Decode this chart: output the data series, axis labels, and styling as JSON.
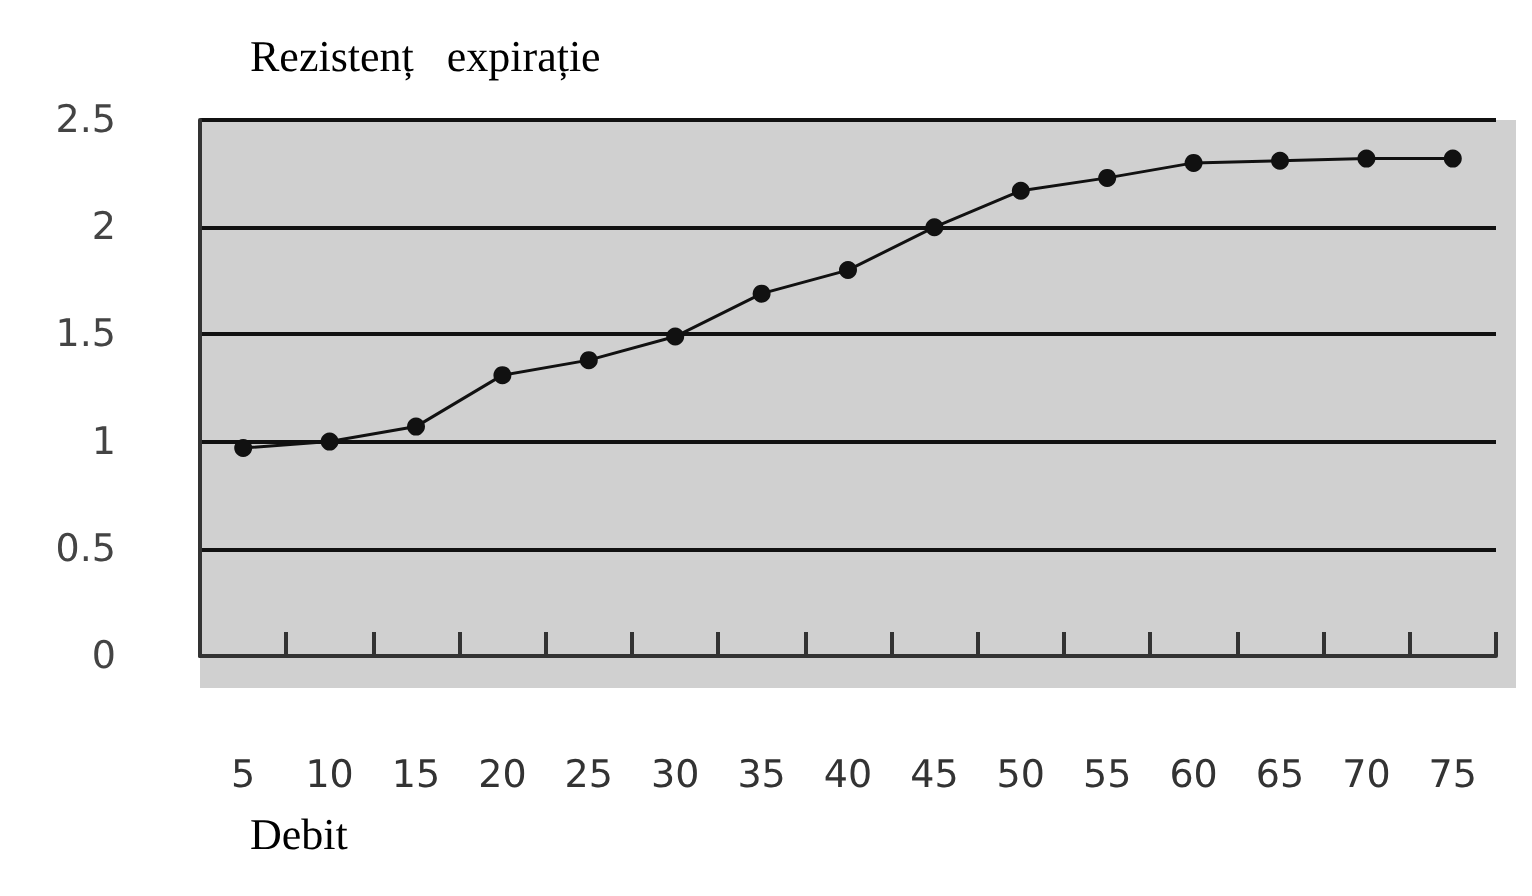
{
  "chart_data": {
    "type": "line",
    "title": "Rezistenț   expirație",
    "xlabel": "Debit",
    "categories": [
      "5",
      "10",
      "15",
      "20",
      "25",
      "30",
      "35",
      "40",
      "45",
      "50",
      "55",
      "60",
      "65",
      "70",
      "75"
    ],
    "values": [
      0.97,
      1.0,
      1.07,
      1.31,
      1.38,
      1.49,
      1.69,
      1.8,
      2.0,
      2.17,
      2.23,
      2.3,
      2.31,
      2.32,
      2.32
    ],
    "color": "#111111",
    "ylim": [
      0,
      2.5
    ],
    "yticks": [
      0,
      0.5,
      1,
      1.5,
      2,
      2.5
    ],
    "grid": "y",
    "marker": "circle",
    "line_style": "solid"
  }
}
